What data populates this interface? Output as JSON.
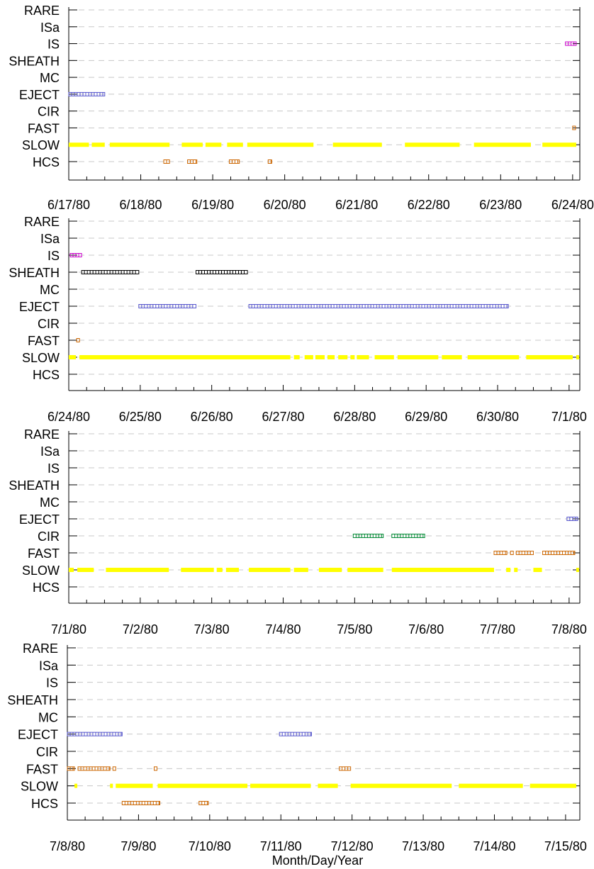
{
  "chart_data": {
    "type": "scatter",
    "xlabel": "Month/Day/Year",
    "categories": [
      "RARE",
      "ISa",
      "IS",
      "SHEATH",
      "MC",
      "EJECT",
      "CIR",
      "FAST",
      "SLOW",
      "HCS"
    ],
    "grid": "dashed horizontal lines at each category",
    "colors": {
      "RARE": "#000000",
      "ISa": "#000000",
      "IS": "#cc00cc",
      "SHEATH": "#000000",
      "MC": "#000000",
      "EJECT": "#5555cc",
      "CIR": "#008833",
      "FAST": "#cc6600",
      "SLOW": "#ffff00",
      "HCS": "#cc6600"
    },
    "panels": [
      {
        "x_tick_labels": [
          "6/17/80",
          "6/18/80",
          "6/19/80",
          "6/20/80",
          "6/21/80",
          "6/22/80",
          "6/23/80",
          "6/24/80"
        ],
        "x_range_days": [
          0,
          7.1
        ],
        "series": [
          {
            "category": "IS",
            "segments": [
              [
                6.9,
                7.05
              ]
            ]
          },
          {
            "category": "EJECT",
            "segments": [
              [
                0.0,
                0.5
              ]
            ]
          },
          {
            "category": "FAST",
            "segments": [
              [
                7.0,
                7.04
              ]
            ]
          },
          {
            "category": "SLOW",
            "segments": [
              [
                0.0,
                0.28
              ],
              [
                0.32,
                0.5
              ],
              [
                0.57,
                1.4
              ],
              [
                1.57,
                1.86
              ],
              [
                1.9,
                2.12
              ],
              [
                2.2,
                2.42
              ],
              [
                2.48,
                3.4
              ],
              [
                3.67,
                4.35
              ],
              [
                4.67,
                5.43
              ],
              [
                5.63,
                6.42
              ],
              [
                6.58,
                7.05
              ]
            ]
          },
          {
            "category": "HCS",
            "segments": [
              [
                1.32,
                1.4
              ],
              [
                1.65,
                1.78
              ],
              [
                2.23,
                2.37
              ],
              [
                2.77,
                2.82
              ]
            ]
          }
        ]
      },
      {
        "x_tick_labels": [
          "6/24/80",
          "6/25/80",
          "6/26/80",
          "6/27/80",
          "6/28/80",
          "6/29/80",
          "6/30/80",
          "7/1/80"
        ],
        "x_range_days": [
          0,
          7.15
        ],
        "series": [
          {
            "category": "IS",
            "segments": [
              [
                0.02,
                0.18
              ]
            ]
          },
          {
            "category": "SHEATH",
            "segments": [
              [
                0.18,
                0.98
              ],
              [
                1.78,
                2.5
              ]
            ]
          },
          {
            "category": "EJECT",
            "segments": [
              [
                0.98,
                1.78
              ],
              [
                2.52,
                6.15
              ]
            ]
          },
          {
            "category": "FAST",
            "segments": [
              [
                0.11,
                0.15
              ]
            ]
          },
          {
            "category": "SLOW",
            "segments": [
              [
                0.0,
                0.1
              ],
              [
                0.15,
                3.1
              ],
              [
                3.15,
                3.23
              ],
              [
                3.3,
                3.42
              ],
              [
                3.45,
                3.58
              ],
              [
                3.62,
                3.72
              ],
              [
                3.77,
                3.9
              ],
              [
                3.94,
                4.0
              ],
              [
                4.03,
                4.2
              ],
              [
                4.28,
                4.55
              ],
              [
                4.6,
                5.17
              ],
              [
                5.22,
                5.5
              ],
              [
                5.58,
                6.3
              ],
              [
                6.4,
                7.05
              ],
              [
                7.1,
                7.14
              ]
            ]
          }
        ]
      },
      {
        "x_tick_labels": [
          "7/1/80",
          "7/2/80",
          "7/3/80",
          "7/4/80",
          "7/5/80",
          "7/6/80",
          "7/7/80",
          "7/8/80"
        ],
        "x_range_days": [
          0,
          7.15
        ],
        "series": [
          {
            "category": "EJECT",
            "segments": [
              [
                6.97,
                7.12
              ]
            ]
          },
          {
            "category": "CIR",
            "segments": [
              [
                3.98,
                4.4
              ],
              [
                4.52,
                4.98
              ]
            ]
          },
          {
            "category": "FAST",
            "segments": [
              [
                5.95,
                6.13
              ],
              [
                6.18,
                6.21
              ],
              [
                6.26,
                6.5
              ],
              [
                6.63,
                7.08
              ]
            ]
          },
          {
            "category": "SLOW",
            "segments": [
              [
                0.0,
                0.07
              ],
              [
                0.12,
                0.35
              ],
              [
                0.52,
                1.4
              ],
              [
                1.57,
                2.03
              ],
              [
                2.07,
                2.15
              ],
              [
                2.2,
                2.38
              ],
              [
                2.52,
                3.1
              ],
              [
                3.15,
                3.35
              ],
              [
                3.5,
                3.82
              ],
              [
                3.9,
                4.4
              ],
              [
                4.52,
                5.95
              ],
              [
                6.12,
                6.18
              ],
              [
                6.23,
                6.28
              ],
              [
                6.5,
                6.62
              ],
              [
                7.1,
                7.14
              ]
            ]
          }
        ]
      },
      {
        "x_tick_labels": [
          "7/8/80",
          "7/9/80",
          "7/10/80",
          "7/11/80",
          "7/12/80",
          "7/13/80",
          "7/14/80",
          "7/15/80"
        ],
        "x_range_days": [
          0,
          7.2
        ],
        "series": [
          {
            "category": "EJECT",
            "segments": [
              [
                0.0,
                0.77
              ],
              [
                2.98,
                3.43
              ]
            ]
          },
          {
            "category": "FAST",
            "segments": [
              [
                0.0,
                0.1
              ],
              [
                0.15,
                0.6
              ],
              [
                0.64,
                0.68
              ],
              [
                1.22,
                1.26
              ],
              [
                3.82,
                3.98
              ]
            ]
          },
          {
            "category": "HCS",
            "segments": [
              [
                0.77,
                1.3
              ],
              [
                1.85,
                1.98
              ]
            ]
          },
          {
            "category": "SLOW",
            "segments": [
              [
                0.1,
                0.14
              ],
              [
                0.6,
                0.63
              ],
              [
                0.68,
                1.2
              ],
              [
                1.27,
                2.53
              ],
              [
                2.57,
                3.42
              ],
              [
                3.52,
                3.8
              ],
              [
                3.98,
                5.4
              ],
              [
                5.5,
                6.4
              ],
              [
                6.5,
                7.15
              ]
            ]
          }
        ]
      }
    ]
  }
}
